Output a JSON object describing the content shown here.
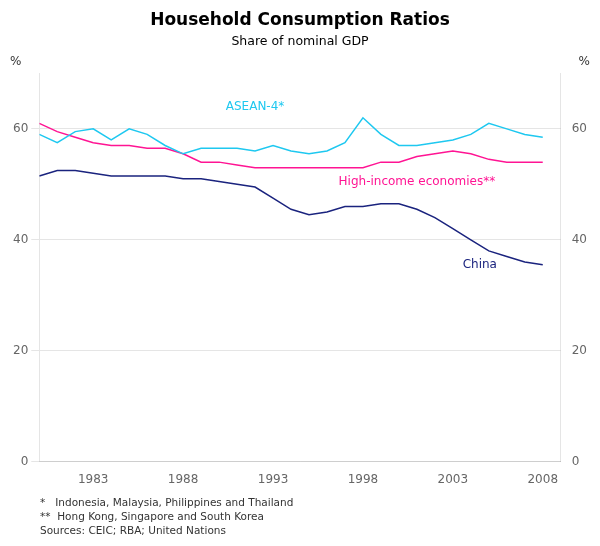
{
  "chart_data": {
    "type": "line",
    "title": "Household Consumption Ratios",
    "subtitle": "Share of nominal GDP",
    "ylabel": "%",
    "y2label": "%",
    "x": [
      1980,
      1981,
      1982,
      1983,
      1984,
      1985,
      1986,
      1987,
      1988,
      1989,
      1990,
      1991,
      1992,
      1993,
      1994,
      1995,
      1996,
      1997,
      1998,
      1999,
      2000,
      2001,
      2002,
      2003,
      2004,
      2005,
      2006,
      2007,
      2008
    ],
    "xlim": [
      1980,
      2009
    ],
    "xticks": [
      1983,
      1988,
      1993,
      1998,
      2003,
      2008
    ],
    "ylim": [
      0,
      70
    ],
    "yticks": [
      0,
      20,
      40,
      60
    ],
    "y2lim": [
      0,
      70
    ],
    "y2ticks": [
      0,
      20,
      40,
      60
    ],
    "grid": "y",
    "series": [
      {
        "name": "ASEAN-4*",
        "color": "#1EC8F0",
        "label_x": 1992,
        "label_y": 64,
        "values": [
          59.0,
          57.5,
          59.5,
          60.0,
          58.0,
          60.0,
          59.0,
          57.0,
          55.5,
          56.5,
          56.5,
          56.5,
          56.0,
          57.0,
          56.0,
          55.5,
          56.0,
          57.5,
          62.0,
          59.0,
          57.0,
          57.0,
          57.5,
          58.0,
          59.0,
          61.0,
          60.0,
          59.0,
          58.5
        ]
      },
      {
        "name": "High-income economies**",
        "color": "#FF1493",
        "label_x": 2001,
        "label_y": 50.5,
        "values": [
          61.0,
          59.5,
          58.5,
          57.5,
          57.0,
          57.0,
          56.5,
          56.5,
          55.5,
          54.0,
          54.0,
          53.5,
          53.0,
          53.0,
          53.0,
          53.0,
          53.0,
          53.0,
          53.0,
          54.0,
          54.0,
          55.0,
          55.5,
          56.0,
          55.5,
          54.5,
          54.0,
          54.0,
          54.0
        ]
      },
      {
        "name": "China",
        "color": "#1A237E",
        "label_x": 2004.5,
        "label_y": 35.5,
        "values": [
          51.5,
          52.5,
          52.5,
          52.0,
          51.5,
          51.5,
          51.5,
          51.5,
          51.0,
          51.0,
          50.5,
          50.0,
          49.5,
          47.5,
          45.5,
          44.5,
          45.0,
          46.0,
          46.0,
          46.5,
          46.5,
          45.5,
          44.0,
          42.0,
          40.0,
          38.0,
          37.0,
          36.0,
          35.5
        ]
      }
    ],
    "footnotes": [
      "*   Indonesia, Malaysia, Philippines and Thailand",
      "**  Hong Kong, Singapore and South Korea",
      "Sources: CEIC; RBA; United Nations"
    ],
    "legend": false
  }
}
